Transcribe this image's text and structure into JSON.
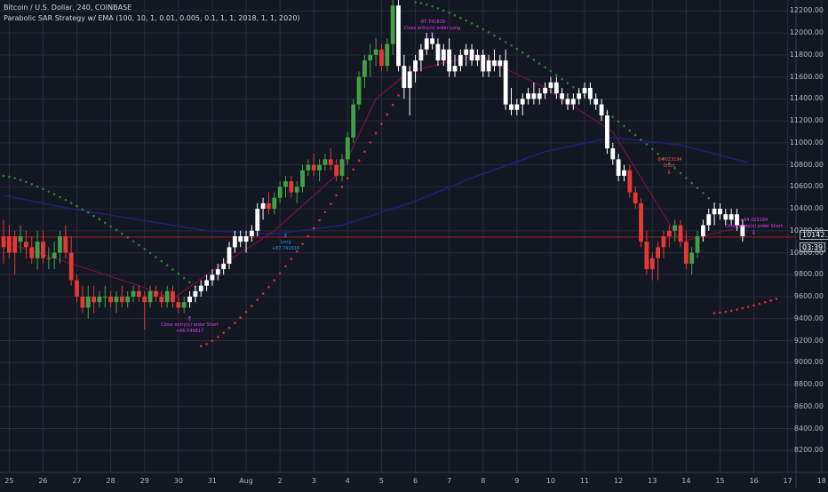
{
  "header": {
    "symbol": "Bitcoin / U.S. Dollar, 240, COINBASE",
    "study": "Parabolic SAR Strategy w/ EMA (100, 10, 1, 0.01, 0.005, 0.1, 1, 1, 2018, 1, 1, 2020)"
  },
  "price_tag": {
    "value": "10142.31",
    "countdown": "03:39"
  },
  "colors": {
    "background": "#131722",
    "grid": "#262b3b",
    "up": "#43a047",
    "down": "#e53935",
    "white_candle": "#ffffff",
    "ema": "#1a237e",
    "short_ema": "#880e4f",
    "sar_up": "#d32f2f",
    "sar_down": "#2e7d32",
    "price_line": "#b71c1c"
  },
  "annotations": [
    {
      "label": "Close entry(s) order Short",
      "value": "+66.549817",
      "color": "purple"
    },
    {
      "label": "Long",
      "value": "+87.741816",
      "color": "blue"
    },
    {
      "label": "Close entry(s) order Long",
      "value": "-87.741816",
      "color": "purple"
    },
    {
      "label": "Short",
      "value": "-84.023194",
      "color": "red"
    },
    {
      "label": "Close entry(s) order Short",
      "value": "+84.023194",
      "color": "purple"
    }
  ],
  "chart_data": {
    "type": "candlestick",
    "title": "Bitcoin / U.S. Dollar, 240, COINBASE",
    "ylim": [
      8000,
      12300
    ],
    "y_ticks": [
      8200,
      8400,
      8600,
      8800,
      9000,
      9200,
      9400,
      9600,
      9800,
      10000,
      10200,
      10400,
      10600,
      10800,
      11000,
      11200,
      11400,
      11600,
      11800,
      12000,
      12200
    ],
    "x_ticks": [
      "25",
      "26",
      "27",
      "28",
      "29",
      "30",
      "31",
      "Aug",
      "2",
      "3",
      "4",
      "5",
      "6",
      "7",
      "8",
      "9",
      "10",
      "11",
      "12",
      "13",
      "14",
      "15",
      "16",
      "17",
      "18"
    ],
    "bars_per_day": 6,
    "x_label_start_bar": 1,
    "ohlc": [
      [
        10050,
        10300,
        9900,
        10150
      ],
      [
        10150,
        10250,
        9950,
        10000
      ],
      [
        10000,
        10200,
        9800,
        10150
      ],
      [
        10150,
        10250,
        10000,
        10100
      ],
      [
        10100,
        10200,
        9950,
        10050
      ],
      [
        10050,
        10150,
        9900,
        9950
      ],
      [
        9950,
        10200,
        9850,
        10100
      ],
      [
        10100,
        10200,
        9900,
        9950
      ],
      [
        9950,
        10050,
        9850,
        9950
      ],
      [
        9950,
        10100,
        9850,
        10000
      ],
      [
        10000,
        10200,
        9900,
        10150
      ],
      [
        10150,
        10250,
        9950,
        10000
      ],
      [
        10000,
        10150,
        9700,
        9750
      ],
      [
        9750,
        9800,
        9550,
        9600
      ],
      [
        9600,
        9700,
        9450,
        9500
      ],
      [
        9500,
        9700,
        9400,
        9600
      ],
      [
        9600,
        9700,
        9450,
        9550
      ],
      [
        9550,
        9650,
        9500,
        9600
      ],
      [
        9600,
        9700,
        9500,
        9600
      ],
      [
        9600,
        9650,
        9500,
        9550
      ],
      [
        9550,
        9650,
        9450,
        9600
      ],
      [
        9600,
        9700,
        9500,
        9550
      ],
      [
        9550,
        9650,
        9500,
        9600
      ],
      [
        9600,
        9700,
        9550,
        9650
      ],
      [
        9650,
        9700,
        9550,
        9600
      ],
      [
        9600,
        9650,
        9300,
        9550
      ],
      [
        9550,
        9700,
        9500,
        9650
      ],
      [
        9650,
        9700,
        9550,
        9600
      ],
      [
        9600,
        9650,
        9500,
        9550
      ],
      [
        9550,
        9700,
        9500,
        9650
      ],
      [
        9650,
        9700,
        9500,
        9550
      ],
      [
        9550,
        9600,
        9450,
        9500
      ],
      [
        9500,
        9600,
        9450,
        9550
      ],
      [
        9550,
        9650,
        9500,
        9600
      ],
      [
        9600,
        9700,
        9550,
        9650
      ],
      [
        9650,
        9750,
        9600,
        9700
      ],
      [
        9700,
        9800,
        9650,
        9750
      ],
      [
        9750,
        9850,
        9700,
        9800
      ],
      [
        9800,
        9900,
        9750,
        9850
      ],
      [
        9850,
        9950,
        9800,
        9900
      ],
      [
        9900,
        10100,
        9850,
        10050
      ],
      [
        10050,
        10200,
        10000,
        10150
      ],
      [
        10150,
        10200,
        10050,
        10100
      ],
      [
        10100,
        10200,
        10000,
        10150
      ],
      [
        10150,
        10250,
        10100,
        10200
      ],
      [
        10200,
        10450,
        10150,
        10400
      ],
      [
        10400,
        10500,
        10300,
        10450
      ],
      [
        10450,
        10550,
        10350,
        10400
      ],
      [
        10400,
        10550,
        10350,
        10500
      ],
      [
        10500,
        10650,
        10450,
        10600
      ],
      [
        10600,
        10700,
        10500,
        10650
      ],
      [
        10650,
        10700,
        10500,
        10550
      ],
      [
        10550,
        10650,
        10450,
        10600
      ],
      [
        10600,
        10800,
        10550,
        10750
      ],
      [
        10750,
        10850,
        10700,
        10800
      ],
      [
        10800,
        10900,
        10700,
        10750
      ],
      [
        10750,
        10850,
        10650,
        10800
      ],
      [
        10800,
        10900,
        10750,
        10850
      ],
      [
        10850,
        10950,
        10750,
        10800
      ],
      [
        10800,
        10850,
        10650,
        10700
      ],
      [
        10700,
        10900,
        10650,
        10850
      ],
      [
        10850,
        11100,
        10800,
        11050
      ],
      [
        11050,
        11400,
        11000,
        11350
      ],
      [
        11350,
        11650,
        11300,
        11600
      ],
      [
        11600,
        11800,
        11500,
        11750
      ],
      [
        11750,
        11900,
        11600,
        11800
      ],
      [
        11800,
        11950,
        11700,
        11850
      ],
      [
        11850,
        11900,
        11650,
        11700
      ],
      [
        11700,
        11950,
        11650,
        11900
      ],
      [
        11900,
        12300,
        11800,
        12250
      ],
      [
        12250,
        12300,
        11650,
        11700
      ],
      [
        11700,
        11800,
        11400,
        11500
      ],
      [
        11500,
        11700,
        11250,
        11650
      ],
      [
        11650,
        11800,
        11550,
        11750
      ],
      [
        11750,
        11900,
        11650,
        11850
      ],
      [
        11850,
        12000,
        11800,
        11950
      ],
      [
        11950,
        12000,
        11850,
        11900
      ],
      [
        11900,
        11950,
        11700,
        11750
      ],
      [
        11750,
        11900,
        11700,
        11850
      ],
      [
        11850,
        11950,
        11600,
        11650
      ],
      [
        11650,
        11800,
        11600,
        11700
      ],
      [
        11700,
        11850,
        11650,
        11800
      ],
      [
        11800,
        11900,
        11700,
        11850
      ],
      [
        11850,
        11900,
        11700,
        11750
      ],
      [
        11750,
        11850,
        11700,
        11800
      ],
      [
        11800,
        11850,
        11600,
        11650
      ],
      [
        11650,
        11800,
        11600,
        11750
      ],
      [
        11750,
        11850,
        11650,
        11700
      ],
      [
        11700,
        11800,
        11600,
        11750
      ],
      [
        11750,
        11850,
        11300,
        11350
      ],
      [
        11350,
        11500,
        11250,
        11300
      ],
      [
        11300,
        11400,
        11250,
        11350
      ],
      [
        11350,
        11450,
        11250,
        11400
      ],
      [
        11400,
        11500,
        11350,
        11450
      ],
      [
        11450,
        11550,
        11350,
        11400
      ],
      [
        11400,
        11500,
        11350,
        11450
      ],
      [
        11450,
        11550,
        11400,
        11500
      ],
      [
        11500,
        11600,
        11450,
        11550
      ],
      [
        11550,
        11600,
        11400,
        11450
      ],
      [
        11450,
        11500,
        11350,
        11400
      ],
      [
        11400,
        11450,
        11300,
        11350
      ],
      [
        11350,
        11450,
        11300,
        11400
      ],
      [
        11400,
        11500,
        11350,
        11450
      ],
      [
        11450,
        11550,
        11400,
        11500
      ],
      [
        11500,
        11550,
        11350,
        11400
      ],
      [
        11400,
        11450,
        11300,
        11350
      ],
      [
        11350,
        11400,
        11200,
        11250
      ],
      [
        11250,
        11300,
        10900,
        10950
      ],
      [
        10950,
        11000,
        10800,
        10850
      ],
      [
        10850,
        10900,
        10650,
        10700
      ],
      [
        10700,
        10800,
        10650,
        10750
      ],
      [
        10750,
        10800,
        10500,
        10550
      ],
      [
        10550,
        10600,
        10400,
        10450
      ],
      [
        10450,
        10500,
        10050,
        10100
      ],
      [
        10100,
        10200,
        9800,
        9850
      ],
      [
        9850,
        10000,
        9750,
        9950
      ],
      [
        9950,
        10100,
        9750,
        10050
      ],
      [
        10050,
        10200,
        9950,
        10150
      ],
      [
        10150,
        10250,
        10050,
        10200
      ],
      [
        10200,
        10300,
        10100,
        10250
      ],
      [
        10250,
        10300,
        10050,
        10100
      ],
      [
        10100,
        10200,
        9850,
        9900
      ],
      [
        9900,
        10050,
        9800,
        10000
      ],
      [
        10000,
        10200,
        9950,
        10150
      ],
      [
        10150,
        10300,
        10100,
        10250
      ],
      [
        10250,
        10400,
        10200,
        10350
      ],
      [
        10350,
        10450,
        10250,
        10400
      ],
      [
        10400,
        10450,
        10300,
        10350
      ],
      [
        10350,
        10400,
        10250,
        10300
      ],
      [
        10300,
        10400,
        10250,
        10350
      ],
      [
        10350,
        10400,
        10200,
        10250
      ],
      [
        10250,
        10300,
        10100,
        10150
      ]
    ],
    "candle_style": [
      "down",
      "down",
      "down",
      "up",
      "down",
      "down",
      "up",
      "down",
      "up",
      "up",
      "up",
      "down",
      "down",
      "down",
      "down",
      "up",
      "down",
      "up",
      "up",
      "down",
      "up",
      "down",
      "up",
      "up",
      "down",
      "down",
      "up",
      "down",
      "down",
      "up",
      "down",
      "down",
      "up",
      "white",
      "white",
      "white",
      "white",
      "white",
      "white",
      "white",
      "white",
      "white",
      "white",
      "white",
      "white",
      "white",
      "white",
      "down",
      "up",
      "up",
      "up",
      "down",
      "up",
      "up",
      "up",
      "down",
      "up",
      "up",
      "down",
      "down",
      "up",
      "up",
      "up",
      "up",
      "up",
      "up",
      "up",
      "down",
      "up",
      "up",
      "white",
      "white",
      "white",
      "white",
      "white",
      "white",
      "white",
      "white",
      "white",
      "white",
      "white",
      "white",
      "white",
      "white",
      "white",
      "white",
      "white",
      "white",
      "white",
      "white",
      "white",
      "white",
      "white",
      "white",
      "white",
      "white",
      "white",
      "white",
      "white",
      "white",
      "white",
      "white",
      "white",
      "white",
      "white",
      "white",
      "white",
      "white",
      "white",
      "white",
      "white",
      "down",
      "down",
      "down",
      "down",
      "down",
      "down",
      "down",
      "down",
      "up",
      "down",
      "down",
      "up",
      "up",
      "white",
      "white",
      "white",
      "white",
      "white",
      "white",
      "white",
      "white"
    ],
    "ema_long": [
      [
        0,
        10520
      ],
      [
        12,
        10400
      ],
      [
        24,
        10300
      ],
      [
        36,
        10200
      ],
      [
        48,
        10170
      ],
      [
        60,
        10250
      ],
      [
        72,
        10450
      ],
      [
        84,
        10700
      ],
      [
        96,
        10920
      ],
      [
        108,
        11050
      ],
      [
        120,
        10980
      ],
      [
        132,
        10820
      ]
    ],
    "ema_short": [
      [
        0,
        10100
      ],
      [
        12,
        9900
      ],
      [
        24,
        9700
      ],
      [
        30,
        9580
      ],
      [
        36,
        9800
      ],
      [
        48,
        10200
      ],
      [
        60,
        10750
      ],
      [
        66,
        11400
      ],
      [
        72,
        11650
      ],
      [
        84,
        11800
      ],
      [
        96,
        11500
      ],
      [
        108,
        11100
      ],
      [
        114,
        10600
      ],
      [
        120,
        10100
      ],
      [
        132,
        10250
      ]
    ],
    "sar_segments": [
      {
        "trend": "down",
        "from_bar": 0,
        "to_bar": 35,
        "start": 10700,
        "end": 9650
      },
      {
        "trend": "up",
        "from_bar": 35,
        "to_bar": 73,
        "start": 9150,
        "end": 11700
      },
      {
        "trend": "down",
        "from_bar": 73,
        "to_bar": 126,
        "start": 12280,
        "end": 10450
      },
      {
        "trend": "up",
        "from_bar": 126,
        "to_bar": 137,
        "start": 9450,
        "end": 9580
      }
    ],
    "price_line": 10142.31
  }
}
